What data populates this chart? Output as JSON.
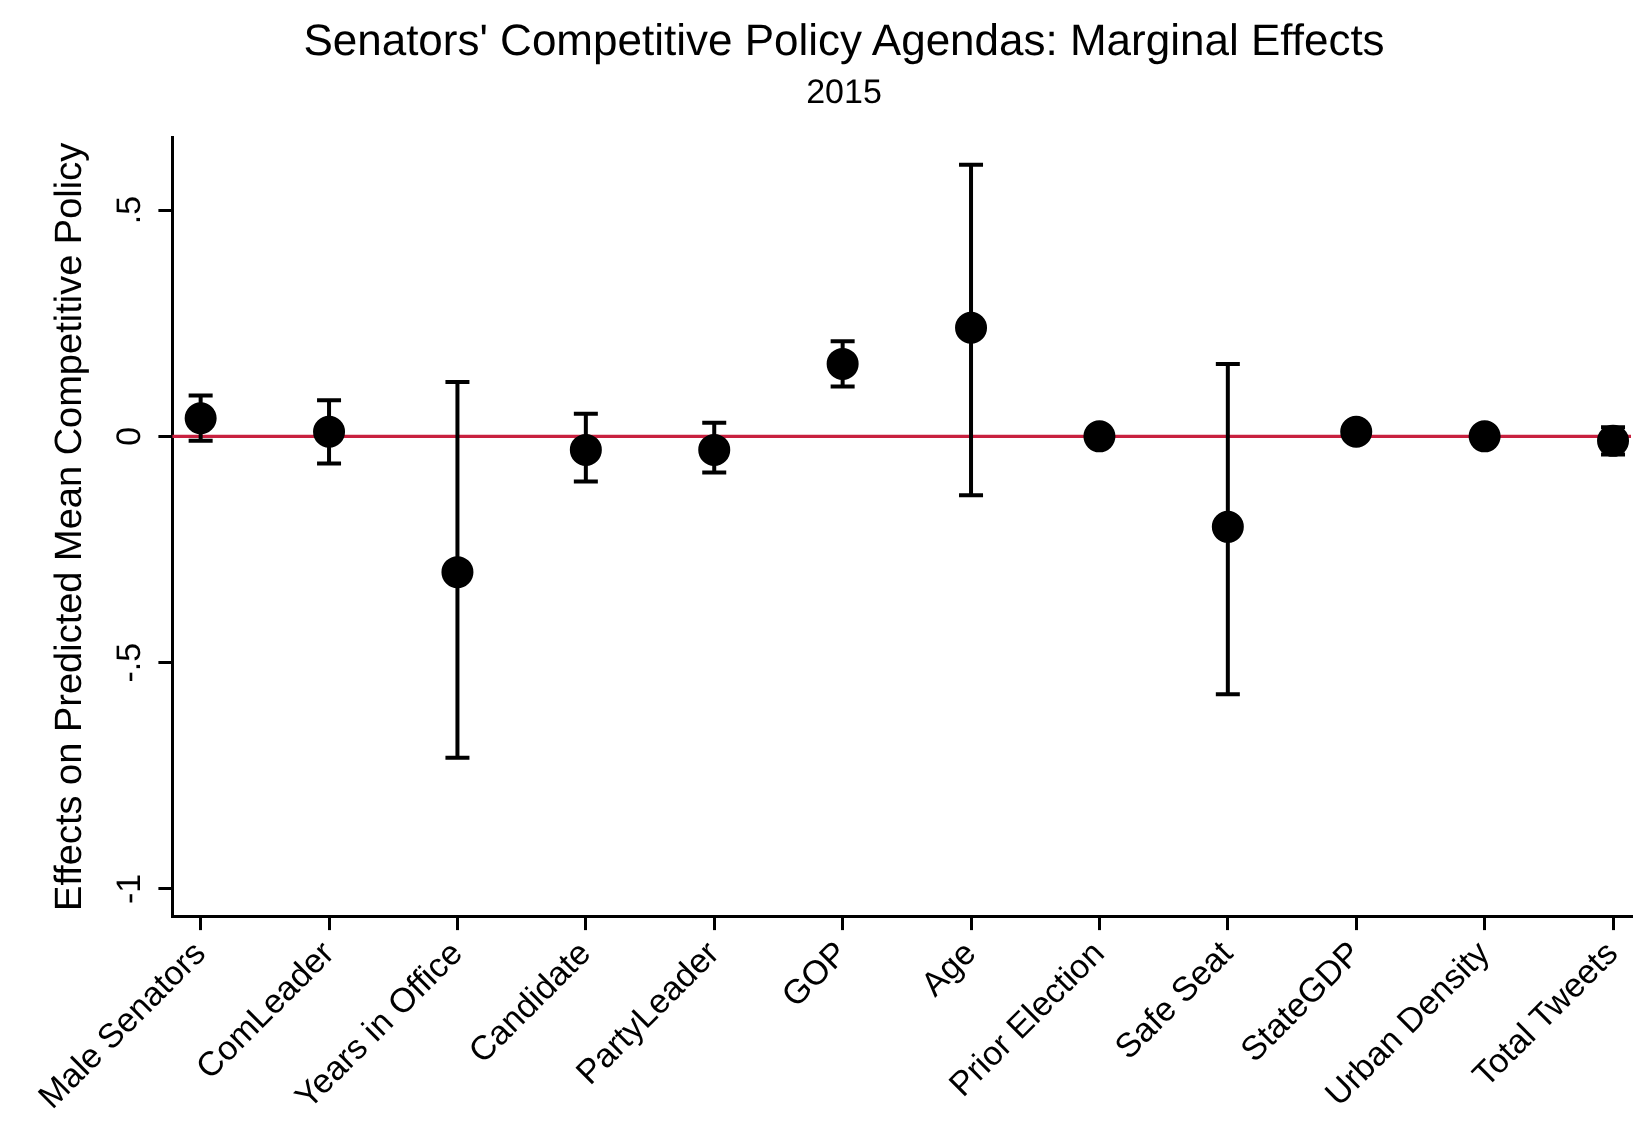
{
  "chart_data": {
    "type": "scatter",
    "title": "Senators' Competitive Policy Agendas: Marginal Effects",
    "subtitle": "2015",
    "ylabel": "Effects on Predicted Mean Competitive Policy",
    "categories": [
      "Male Senators",
      "ComLeader",
      "Years in Office",
      "Candidate",
      "PartyLeader",
      "GOP",
      "Age",
      "Prior Election",
      "Safe Seat",
      "StateGDP",
      "Urban Density",
      "Total Tweets"
    ],
    "values": [
      0.04,
      0.01,
      -0.3,
      -0.03,
      -0.03,
      0.16,
      0.24,
      0.0,
      -0.2,
      0.01,
      0.0,
      -0.01
    ],
    "errors": [
      [
        -0.01,
        0.09
      ],
      [
        -0.06,
        0.08
      ],
      [
        -0.71,
        0.12
      ],
      [
        -0.1,
        0.05
      ],
      [
        -0.08,
        0.03
      ],
      [
        0.11,
        0.21
      ],
      [
        -0.13,
        0.6
      ],
      null,
      [
        -0.57,
        0.16
      ],
      null,
      null,
      [
        -0.04,
        0.02
      ]
    ],
    "color": "#000000",
    "ylim": [
      -1.06,
      0.66
    ],
    "yticks": [
      {
        "value": 0.5,
        "label": ".5"
      },
      0,
      {
        "value": -0.5,
        "label": "-.5"
      },
      -1
    ],
    "ref_lines": [
      {
        "axis": "y",
        "value": 0,
        "color": "#c8203f"
      }
    ],
    "grid": false,
    "legend": false,
    "marker": "circle"
  }
}
